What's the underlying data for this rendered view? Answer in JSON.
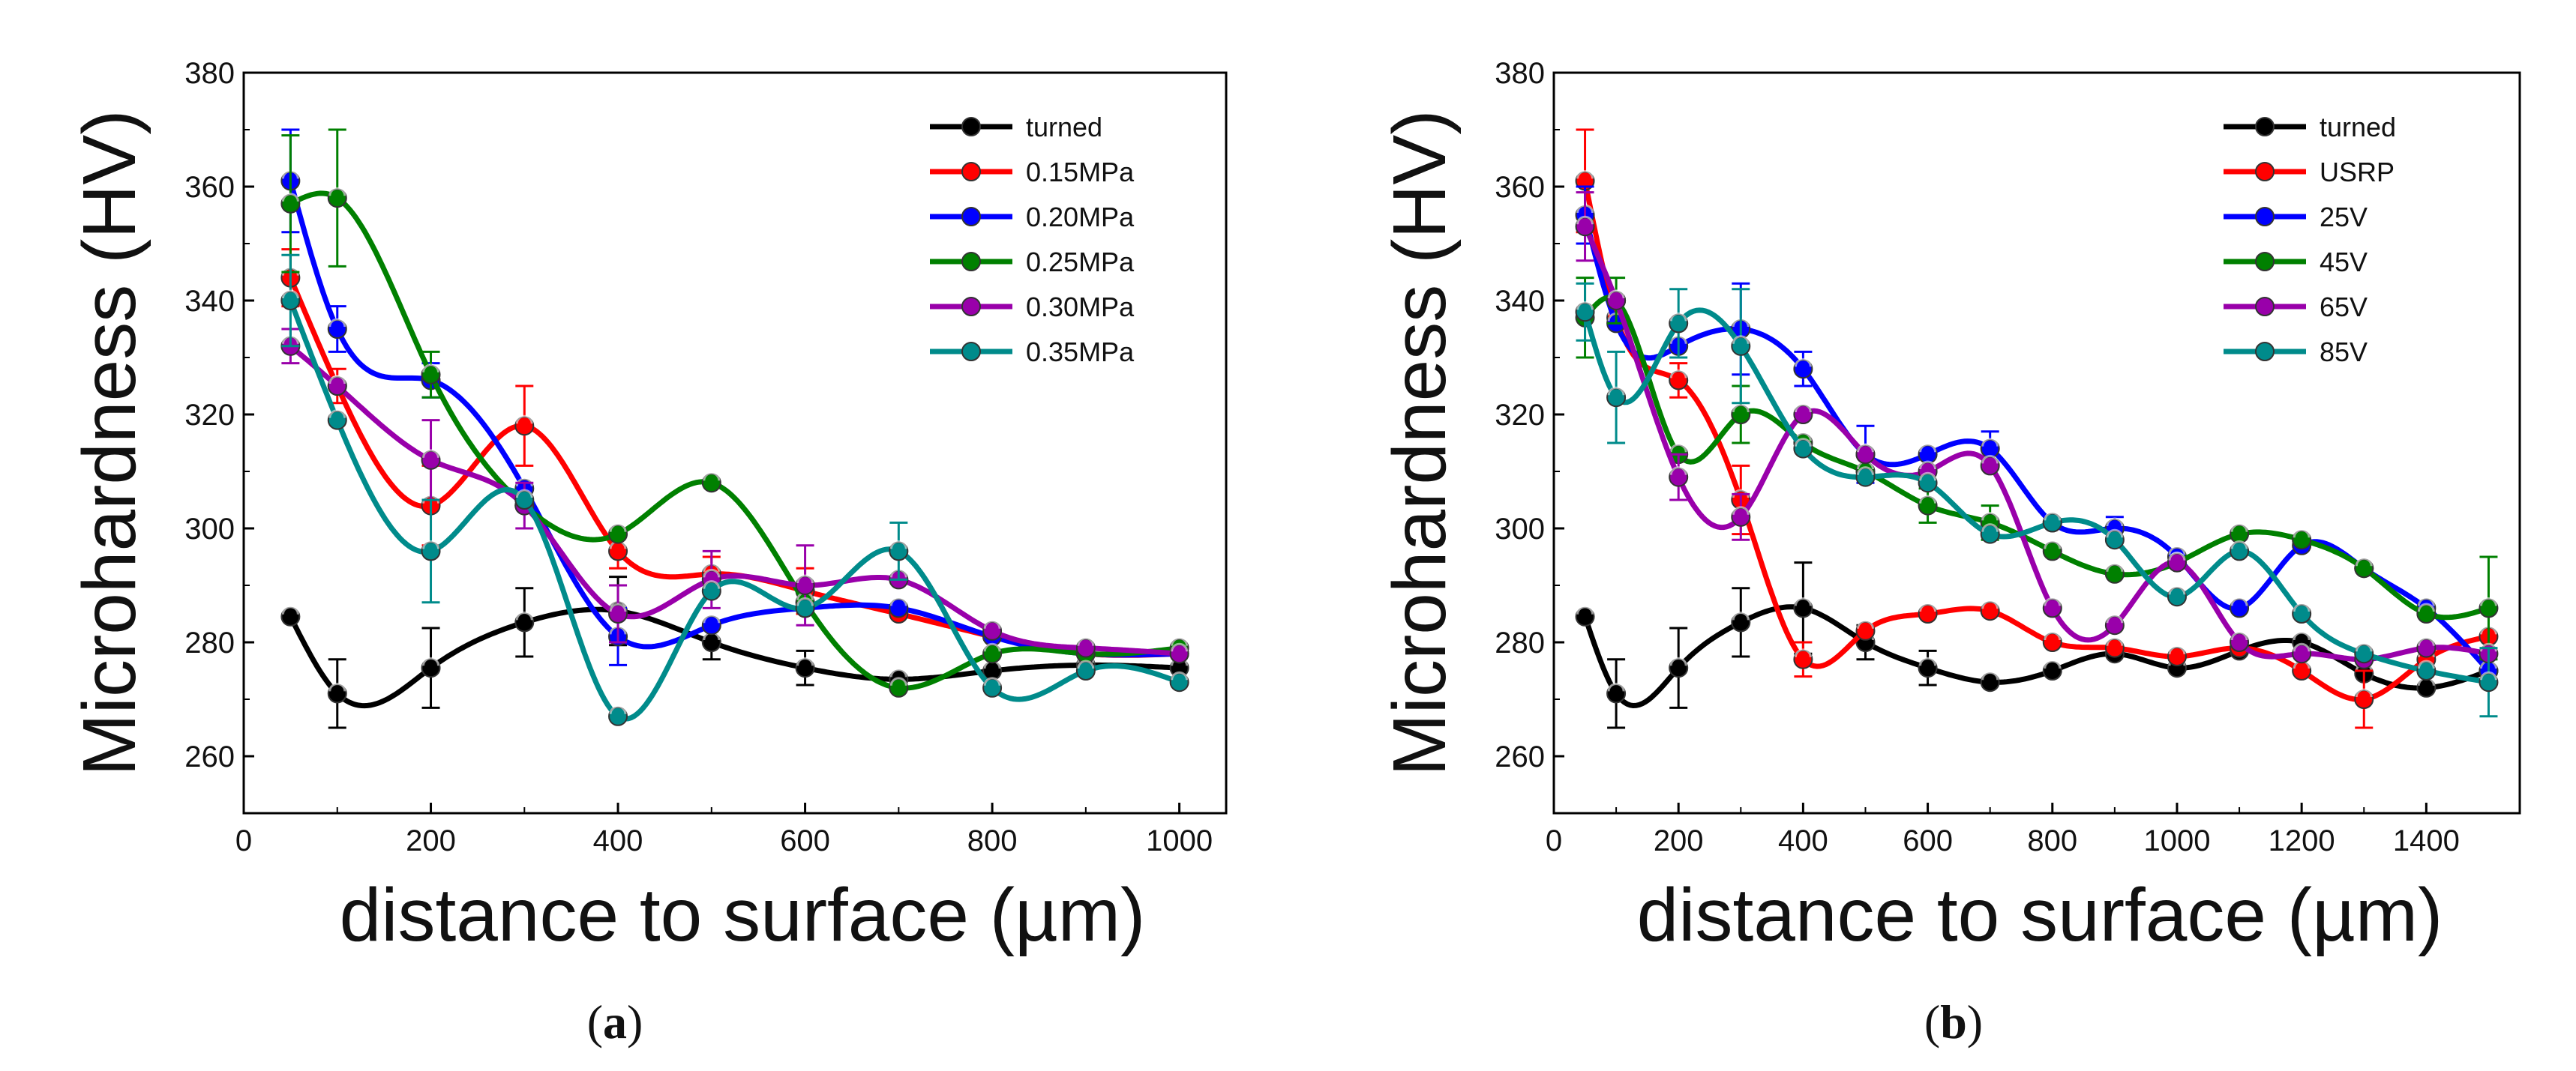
{
  "chart_data": [
    {
      "type": "line",
      "panel_label": "a",
      "title": "",
      "xlabel": "distance to surface (µm)",
      "ylabel": "Microhardness (HV)",
      "xlim": [
        0,
        1050
      ],
      "ylim": [
        250,
        380
      ],
      "xticks": [
        0,
        200,
        400,
        600,
        800,
        1000
      ],
      "yticks": [
        260,
        280,
        300,
        320,
        340,
        360,
        380
      ],
      "legend_position": "top-right",
      "grid": false,
      "series": [
        {
          "name": "turned",
          "color": "#000000",
          "x": [
            50,
            100,
            200,
            300,
            400,
            500,
            600,
            700,
            800,
            900,
            1000
          ],
          "y": [
            284.5,
            271,
            275.5,
            283.5,
            285.5,
            280,
            275.5,
            273.5,
            275,
            276,
            275.5
          ],
          "err": [
            0,
            6,
            7,
            6,
            6,
            3,
            3,
            0,
            0,
            0,
            0
          ]
        },
        {
          "name": "0.15MPa",
          "color": "#ff0000",
          "x": [
            50,
            100,
            200,
            300,
            400,
            500,
            600,
            700,
            800,
            900,
            1000
          ],
          "y": [
            344,
            325,
            304,
            318,
            296,
            292,
            289,
            285,
            281,
            278,
            278
          ],
          "err": [
            5,
            3,
            7,
            7,
            3,
            3,
            4,
            0,
            0,
            0,
            0
          ]
        },
        {
          "name": "0.20MPa",
          "color": "#0000ff",
          "x": [
            50,
            100,
            200,
            300,
            400,
            500,
            600,
            700,
            800,
            900,
            1000
          ],
          "y": [
            361,
            335,
            326,
            307,
            281,
            283,
            286,
            286,
            281,
            278,
            278
          ],
          "err": [
            9,
            4,
            3,
            0,
            5,
            0,
            0,
            0,
            0,
            0,
            0
          ]
        },
        {
          "name": "0.25MPa",
          "color": "#008000",
          "x": [
            50,
            100,
            200,
            300,
            400,
            500,
            600,
            700,
            800,
            900,
            1000
          ],
          "y": [
            357,
            358,
            327,
            304,
            299,
            308,
            287,
            272,
            278,
            278,
            279
          ],
          "err": [
            12,
            12,
            4,
            0,
            0,
            0,
            0,
            0,
            0,
            0,
            0
          ]
        },
        {
          "name": "0.30MPa",
          "color": "#9900aa",
          "x": [
            50,
            100,
            200,
            300,
            400,
            500,
            600,
            700,
            800,
            900,
            1000
          ],
          "y": [
            332,
            325,
            312,
            304,
            285,
            291,
            290,
            291,
            282,
            279,
            278
          ],
          "err": [
            3,
            0,
            7,
            4,
            5,
            5,
            7,
            0,
            0,
            0,
            0
          ]
        },
        {
          "name": "0.35MPa",
          "color": "#008b8b",
          "x": [
            50,
            100,
            200,
            300,
            400,
            500,
            600,
            700,
            800,
            900,
            1000
          ],
          "y": [
            340,
            319,
            296,
            305,
            267,
            289,
            286,
            296,
            272,
            275,
            273
          ],
          "err": [
            8,
            0,
            9,
            0,
            0,
            0,
            0,
            5,
            0,
            0,
            0
          ]
        }
      ]
    },
    {
      "type": "line",
      "panel_label": "b",
      "title": "",
      "xlabel": "distance to surface (µm)",
      "ylabel": "Microhardness (HV)",
      "xlim": [
        0,
        1550
      ],
      "ylim": [
        250,
        380
      ],
      "xticks": [
        0,
        200,
        400,
        600,
        800,
        1000,
        1200,
        1400
      ],
      "yticks": [
        260,
        280,
        300,
        320,
        340,
        360,
        380
      ],
      "legend_position": "top-right",
      "grid": false,
      "series": [
        {
          "name": "turned",
          "color": "#000000",
          "x": [
            50,
            100,
            200,
            300,
            400,
            500,
            600,
            700,
            800,
            900,
            1000,
            1100,
            1200,
            1300,
            1400,
            1500
          ],
          "y": [
            284.5,
            271,
            275.5,
            283.5,
            286,
            280,
            275.5,
            273,
            275,
            278,
            275.5,
            278.5,
            280,
            274.5,
            272,
            275
          ],
          "err": [
            0,
            6,
            7,
            6,
            8,
            3,
            3,
            0,
            0,
            0,
            0,
            0,
            0,
            0,
            0,
            0
          ]
        },
        {
          "name": "USRP",
          "color": "#ff0000",
          "x": [
            50,
            100,
            200,
            300,
            400,
            500,
            600,
            700,
            800,
            900,
            1000,
            1100,
            1200,
            1300,
            1400,
            1500
          ],
          "y": [
            361,
            337,
            326,
            305,
            277,
            282,
            285,
            285.5,
            280,
            279,
            277.5,
            279,
            275,
            270,
            277,
            281
          ],
          "err": [
            9,
            0,
            3,
            6,
            3,
            0,
            0,
            0,
            0,
            0,
            0,
            0,
            0,
            5,
            0,
            0
          ]
        },
        {
          "name": "25V",
          "color": "#0000ff",
          "x": [
            50,
            100,
            200,
            300,
            400,
            500,
            600,
            700,
            800,
            900,
            1000,
            1100,
            1200,
            1300,
            1400,
            1500
          ],
          "y": [
            355,
            336,
            332,
            335,
            328,
            313,
            313,
            314,
            301,
            300,
            295,
            286,
            297,
            293,
            286,
            275
          ],
          "err": [
            5,
            0,
            0,
            8,
            3,
            5,
            0,
            3,
            0,
            2,
            0,
            0,
            0,
            0,
            0,
            0
          ]
        },
        {
          "name": "45V",
          "color": "#008000",
          "x": [
            50,
            100,
            200,
            300,
            400,
            500,
            600,
            700,
            800,
            900,
            1000,
            1100,
            1200,
            1300,
            1400,
            1500
          ],
          "y": [
            337,
            340,
            313,
            320,
            315,
            310,
            304,
            301,
            296,
            292,
            294,
            299,
            298,
            293,
            285,
            286
          ],
          "err": [
            7,
            4,
            0,
            5,
            0,
            0,
            3,
            3,
            0,
            0,
            0,
            0,
            0,
            0,
            0,
            9
          ]
        },
        {
          "name": "65V",
          "color": "#9900aa",
          "x": [
            50,
            100,
            200,
            300,
            400,
            500,
            600,
            700,
            800,
            900,
            1000,
            1100,
            1200,
            1300,
            1400,
            1500
          ],
          "y": [
            353,
            340,
            309,
            302,
            320,
            313,
            310,
            311,
            286,
            283,
            294,
            280,
            278,
            277,
            279,
            278
          ],
          "err": [
            6,
            0,
            4,
            4,
            0,
            0,
            0,
            0,
            0,
            0,
            0,
            0,
            0,
            0,
            0,
            0
          ]
        },
        {
          "name": "85V",
          "color": "#008b8b",
          "x": [
            50,
            100,
            200,
            300,
            400,
            500,
            600,
            700,
            800,
            900,
            1000,
            1100,
            1200,
            1300,
            1400,
            1500
          ],
          "y": [
            338,
            323,
            336,
            332,
            314,
            309,
            308,
            299,
            301,
            298,
            288,
            296,
            285,
            278,
            275,
            273
          ],
          "err": [
            5,
            8,
            6,
            10,
            0,
            0,
            0,
            0,
            0,
            0,
            0,
            0,
            0,
            0,
            0,
            6
          ]
        }
      ]
    }
  ]
}
